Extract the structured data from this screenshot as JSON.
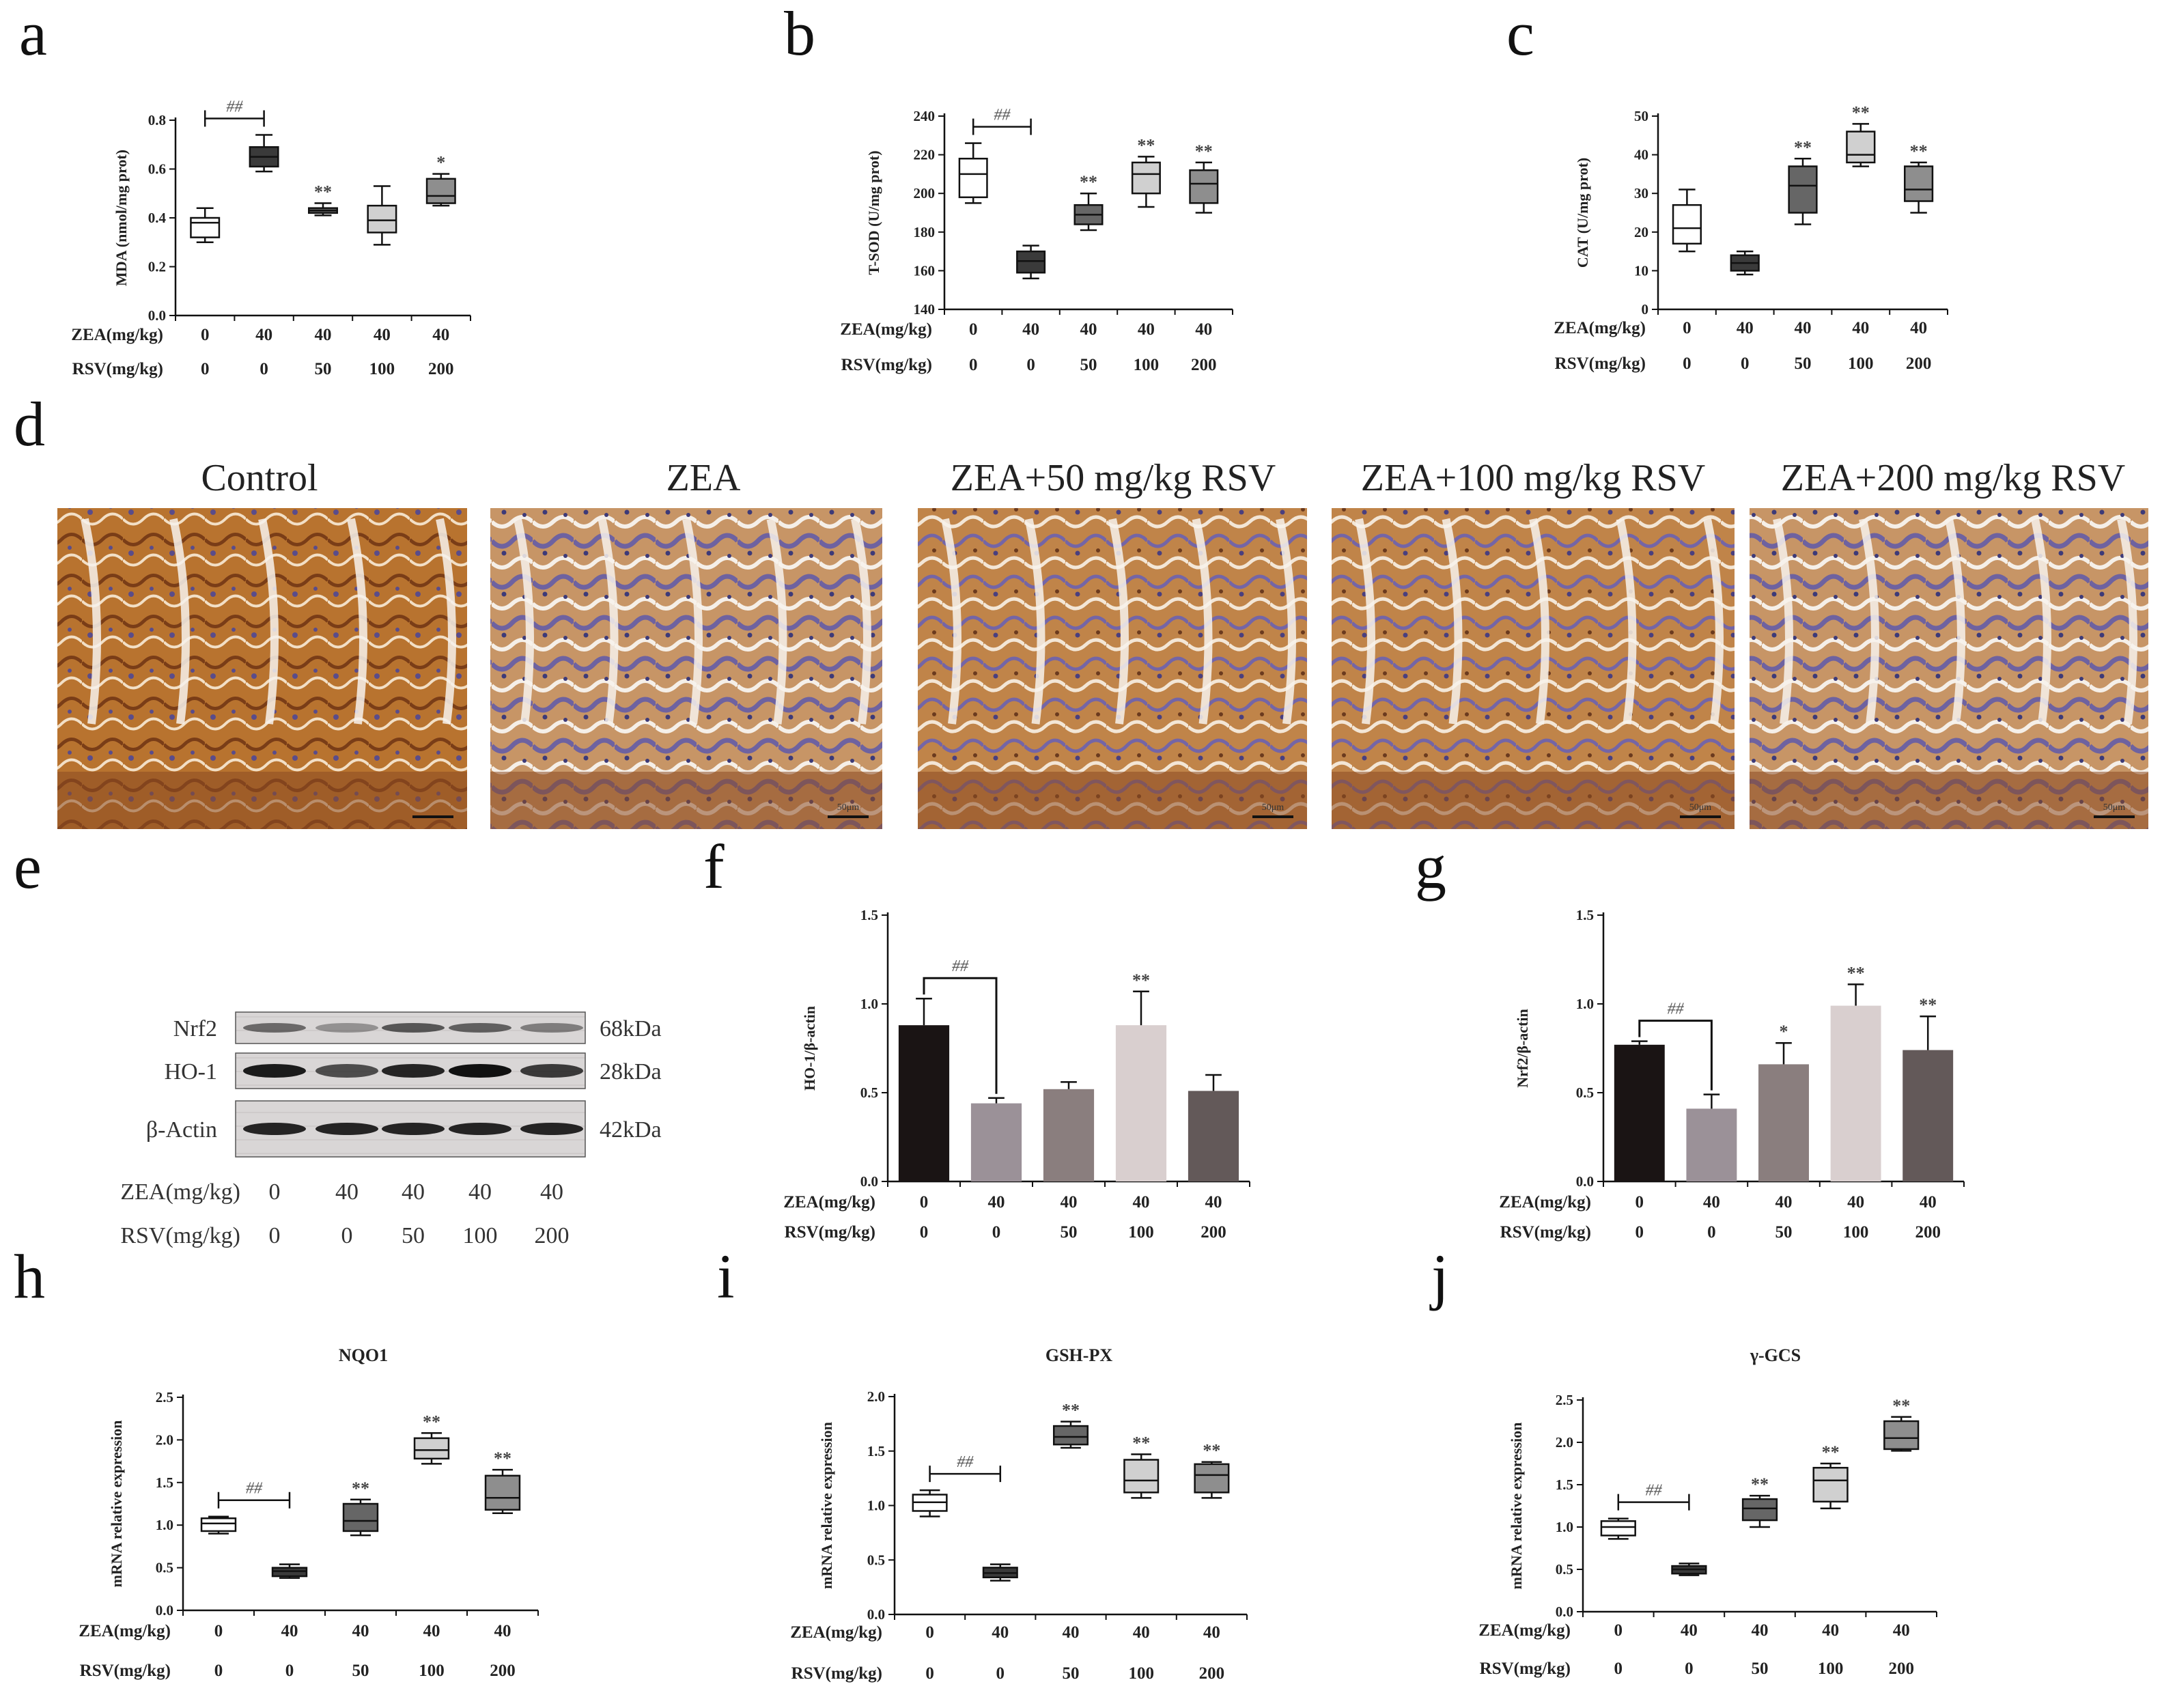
{
  "panel_labels": [
    "a",
    "b",
    "c",
    "d",
    "e",
    "f",
    "g",
    "h",
    "i",
    "j"
  ],
  "conditions": {
    "zea_label": "ZEA(mg/kg)",
    "rsv_label": "RSV(mg/kg)",
    "zea": [
      "0",
      "40",
      "40",
      "40",
      "40"
    ],
    "rsv": [
      "0",
      "0",
      "50",
      "100",
      "200"
    ]
  },
  "hist": {
    "titles": [
      "Control",
      "ZEA",
      "ZEA+50 mg/kg RSV",
      "ZEA+100 mg/kg RSV",
      "ZEA+200 mg/kg RSV"
    ],
    "scale_bar": "50μm"
  },
  "western": {
    "bands": [
      {
        "name": "Nrf2",
        "kda": "68kDa"
      },
      {
        "name": "HO-1",
        "kda": "28kDa"
      },
      {
        "name": "β-Actin",
        "kda": "42kDa"
      }
    ]
  },
  "colors": {
    "box_fills": [
      "#ffffff",
      "#3a3a3a",
      "#666666",
      "#d0d0d0",
      "#8e8e8e"
    ],
    "bar_fills": [
      "#1a1414",
      "#9b9198",
      "#8a7e7e",
      "#d9cfcf",
      "#635959"
    ]
  },
  "chart_data": [
    {
      "id": "a",
      "type": "box",
      "title": "",
      "ylabel": "MDA (nmol/mg prot)",
      "ylim": [
        0,
        0.8
      ],
      "yticks": [
        "0.0",
        "0.2",
        "0.4",
        "0.6",
        "0.8"
      ],
      "boxes": [
        [
          0.3,
          0.32,
          0.38,
          0.4,
          0.44
        ],
        [
          0.59,
          0.61,
          0.65,
          0.69,
          0.74
        ],
        [
          0.41,
          0.42,
          0.43,
          0.44,
          0.46
        ],
        [
          0.29,
          0.34,
          0.39,
          0.45,
          0.53
        ],
        [
          0.45,
          0.46,
          0.49,
          0.56,
          0.58
        ]
      ],
      "sig": [
        "",
        "",
        "**",
        "",
        "*"
      ],
      "hash": "##"
    },
    {
      "id": "b",
      "type": "box",
      "title": "",
      "ylabel": "T-SOD (U/mg prot)",
      "ylim": [
        140,
        240
      ],
      "yticks": [
        "140",
        "160",
        "180",
        "200",
        "220",
        "240"
      ],
      "boxes": [
        [
          195,
          198,
          210,
          218,
          226
        ],
        [
          156,
          159,
          165,
          170,
          173
        ],
        [
          181,
          184,
          189,
          194,
          200
        ],
        [
          193,
          200,
          210,
          216,
          219
        ],
        [
          190,
          195,
          205,
          212,
          216
        ]
      ],
      "sig": [
        "",
        "",
        "**",
        "**",
        "**"
      ],
      "hash": "##"
    },
    {
      "id": "c",
      "type": "box",
      "title": "",
      "ylabel": "CAT (U/mg prot)",
      "ylim": [
        0,
        50
      ],
      "yticks": [
        "0",
        "10",
        "20",
        "30",
        "40",
        "50"
      ],
      "boxes": [
        [
          15,
          17,
          21,
          27,
          31
        ],
        [
          9,
          10,
          12,
          14,
          15
        ],
        [
          22,
          25,
          32,
          37,
          39
        ],
        [
          37,
          38,
          40,
          46,
          48
        ],
        [
          25,
          28,
          31,
          37,
          38
        ]
      ],
      "sig": [
        "",
        "",
        "**",
        "**",
        "**"
      ],
      "hash": ""
    },
    {
      "id": "f",
      "type": "bar",
      "title": "",
      "ylabel": "HO-1/β-actin",
      "ylim": [
        0,
        1.5
      ],
      "yticks": [
        "0.0",
        "0.5",
        "1.0",
        "1.5"
      ],
      "values": [
        0.88,
        0.44,
        0.52,
        0.88,
        0.51
      ],
      "errors": [
        0.15,
        0.03,
        0.04,
        0.19,
        0.09
      ],
      "sig": [
        "",
        "",
        "",
        "**",
        ""
      ],
      "hash": "##"
    },
    {
      "id": "g",
      "type": "bar",
      "title": "",
      "ylabel": "Nrf2/β-actin",
      "ylim": [
        0,
        1.5
      ],
      "yticks": [
        "0.0",
        "0.5",
        "1.0",
        "1.5"
      ],
      "values": [
        0.77,
        0.41,
        0.66,
        0.99,
        0.74
      ],
      "errors": [
        0.02,
        0.08,
        0.12,
        0.12,
        0.19
      ],
      "sig": [
        "",
        "",
        "*",
        "**",
        "**"
      ],
      "hash": "##"
    },
    {
      "id": "h",
      "type": "box",
      "title": "NQO1",
      "ylabel": "mRNA relative expression",
      "ylim": [
        0,
        2.5
      ],
      "yticks": [
        "0.0",
        "0.5",
        "1.0",
        "1.5",
        "2.0",
        "2.5"
      ],
      "boxes": [
        [
          0.9,
          0.93,
          1.02,
          1.08,
          1.1
        ],
        [
          0.38,
          0.4,
          0.46,
          0.5,
          0.54
        ],
        [
          0.88,
          0.93,
          1.05,
          1.25,
          1.3
        ],
        [
          1.72,
          1.78,
          1.88,
          2.02,
          2.08
        ],
        [
          1.14,
          1.18,
          1.32,
          1.58,
          1.65
        ]
      ],
      "sig": [
        "",
        "",
        "**",
        "**",
        "**"
      ],
      "hash": "##"
    },
    {
      "id": "i",
      "type": "box",
      "title": "GSH-PX",
      "ylabel": "mRNA relative expression",
      "ylim": [
        0,
        2.0
      ],
      "yticks": [
        "0.0",
        "0.5",
        "1.0",
        "1.5",
        "2.0"
      ],
      "boxes": [
        [
          0.9,
          0.95,
          1.03,
          1.1,
          1.14
        ],
        [
          0.31,
          0.34,
          0.38,
          0.43,
          0.46
        ],
        [
          1.53,
          1.56,
          1.63,
          1.73,
          1.77
        ],
        [
          1.07,
          1.12,
          1.23,
          1.42,
          1.47
        ],
        [
          1.07,
          1.12,
          1.28,
          1.38,
          1.4
        ]
      ],
      "sig": [
        "",
        "",
        "**",
        "**",
        "**"
      ],
      "hash": "##"
    },
    {
      "id": "j",
      "type": "box",
      "title": "γ-GCS",
      "ylabel": "mRNA relative expression",
      "ylim": [
        0,
        2.5
      ],
      "yticks": [
        "0.0",
        "0.5",
        "1.0",
        "1.5",
        "2.0",
        "2.5"
      ],
      "boxes": [
        [
          0.86,
          0.9,
          1.0,
          1.07,
          1.1
        ],
        [
          0.43,
          0.45,
          0.5,
          0.54,
          0.57
        ],
        [
          1.0,
          1.08,
          1.22,
          1.33,
          1.37
        ],
        [
          1.22,
          1.3,
          1.55,
          1.7,
          1.75
        ],
        [
          1.9,
          1.92,
          2.05,
          2.25,
          2.3
        ]
      ],
      "sig": [
        "",
        "",
        "**",
        "**",
        "**"
      ],
      "hash": "##"
    }
  ]
}
